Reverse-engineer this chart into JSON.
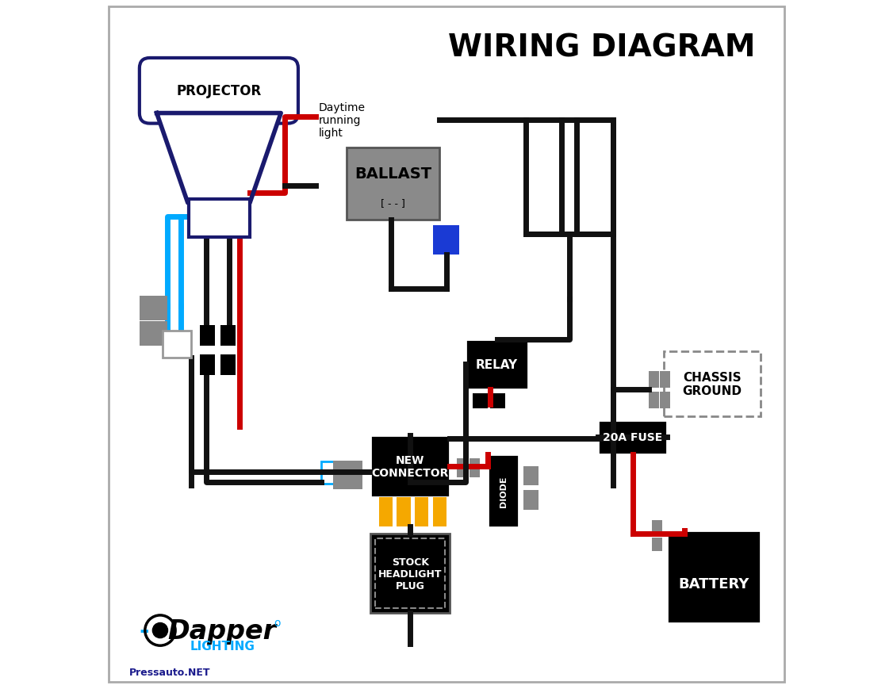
{
  "title": "WIRING DIAGRAM",
  "background_color": "#ffffff",
  "border_color": "#aaaaaa",
  "title_fontsize": 28,
  "wire_color_black": "#111111",
  "wire_color_red": "#cc0000",
  "wire_color_blue": "#00aaff",
  "connector_gray": "#888888",
  "blue_box_color": "#1a3ad4",
  "yellow_pin_color": "#f5a800",
  "ballast_color": "#8a8a8a",
  "projector_color": "#1a1a6e",
  "relay_label": "RELAY",
  "ballast_label": "BALLAST",
  "nc_label": "NEW\nCONNECTOR",
  "shp_label": "STOCK\nHEADLIGHT\nPLUG",
  "diode_label": "DIODE",
  "fuse_label": "20A FUSE",
  "battery_label": "BATTERY",
  "chassis_label": "CHASSIS\nGROUND",
  "drl_label": "Daytime\nrunning\nlight",
  "projector_label": "PROJECTOR",
  "logo_dash": "-",
  "logo_text": "Dapper",
  "logo_sub": "LIGHTING",
  "watermark": "Pressauto.NET"
}
